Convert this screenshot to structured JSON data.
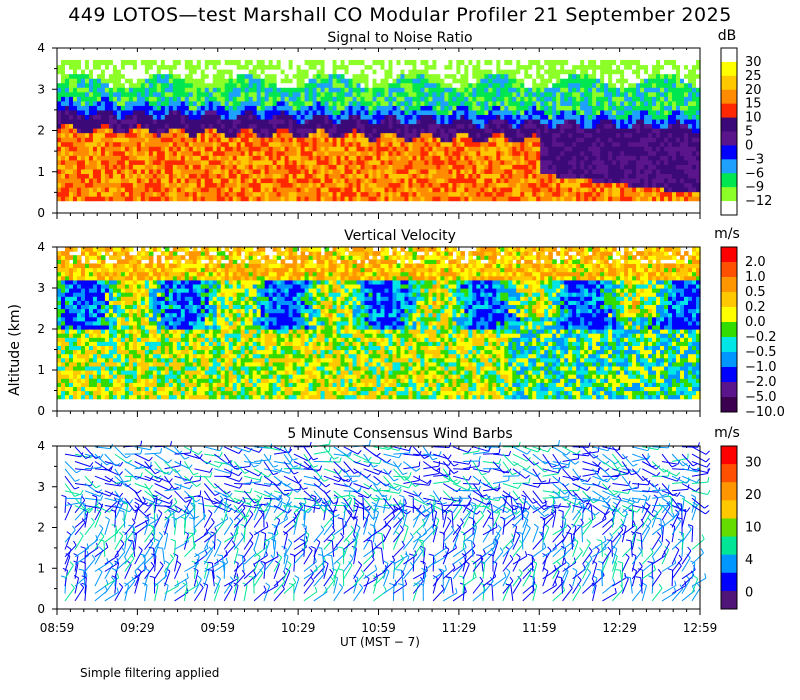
{
  "chart_data": [
    {
      "type": "heatmap",
      "title": "449 LOTOS—test Marshall CO Modular Profiler 21 September 2025",
      "subtitle": "Signal to Noise Ratio",
      "ylabel": "Altitude (km)",
      "xlabel": "UT  (MST − 7)",
      "ylim": [
        0,
        4
      ],
      "y_ticks": [
        "0",
        "1",
        "2",
        "3",
        "4"
      ],
      "x_ticks": [
        "08:59",
        "09:29",
        "09:59",
        "10:29",
        "10:59",
        "11:29",
        "11:59",
        "12:29",
        "12:59"
      ],
      "colorbar_unit": "dB",
      "colorbar_labels": [
        "30",
        "25",
        "20",
        "15",
        "10",
        "5",
        "0",
        "−3",
        "−6",
        "−9",
        "−12"
      ],
      "colorbar_colors": [
        "#ffffff",
        "#ffff00",
        "#ffc800",
        "#ff8c00",
        "#ff2800",
        "#3c0a78",
        "#5a148c",
        "#0000ff",
        "#1ea0ff",
        "#00e650",
        "#8cff28",
        "#ffffff"
      ],
      "height_layers": [
        {
          "from_km": 0.3,
          "to_km": 1.1,
          "snr_db": "10 to 20"
        },
        {
          "from_km": 1.1,
          "to_km": 2.0,
          "snr_db": "10 to 20"
        },
        {
          "from_km": 2.0,
          "to_km": 2.4,
          "snr_db": "0 to 5"
        },
        {
          "from_km": 2.4,
          "to_km": 3.4,
          "snr_db": "-12 to -3"
        }
      ]
    },
    {
      "type": "heatmap",
      "subtitle": "Vertical Velocity",
      "ylim": [
        0,
        4
      ],
      "y_ticks": [
        "0",
        "1",
        "2",
        "3",
        "4"
      ],
      "colorbar_unit": "m/s",
      "colorbar_labels": [
        "2.0",
        "1.0",
        "0.5",
        "0.2",
        "0.0",
        "−0.2",
        "−0.5",
        "−1.0",
        "−2.0",
        "−5.0",
        "−10.0"
      ],
      "colorbar_colors": [
        "#ff0000",
        "#ff5000",
        "#ff9600",
        "#ffc800",
        "#ffff00",
        "#32dc00",
        "#00e6e6",
        "#0096ff",
        "#0000ff",
        "#5a148c",
        "#3c0050"
      ]
    },
    {
      "type": "scatter",
      "subtitle": "5 Minute Consensus Wind Barbs",
      "ylim": [
        0,
        4
      ],
      "y_ticks": [
        "0",
        "1",
        "2",
        "3",
        "4"
      ],
      "colorbar_unit": "m/s",
      "colorbar_labels": [
        "30",
        "20",
        "10",
        "4",
        "0"
      ],
      "colorbar_colors": [
        "#ff0000",
        "#ff5000",
        "#ff9600",
        "#ffc800",
        "#64dc00",
        "#00e696",
        "#0096ff",
        "#0000ff",
        "#501478"
      ],
      "speed_range_ms": [
        0,
        15
      ]
    }
  ],
  "footer": "Simple filtering applied"
}
